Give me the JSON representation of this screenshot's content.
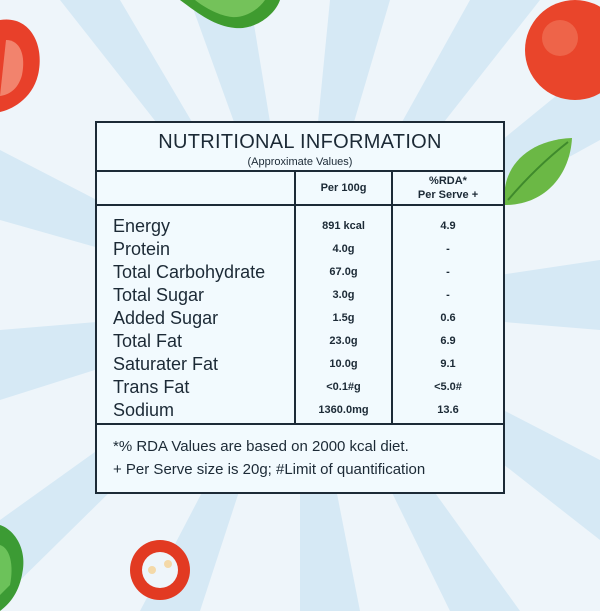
{
  "header": {
    "title": "NUTRITIONAL INFORMATION",
    "subtitle": "(Approximate Values)"
  },
  "columns": {
    "per_100g": "Per 100g",
    "rda_line1": "%RDA*",
    "rda_line2": "Per Serve +"
  },
  "rows": [
    {
      "name": "Energy",
      "per100": "891 kcal",
      "rda": "4.9"
    },
    {
      "name": "Protein",
      "per100": "4.0g",
      "rda": "-"
    },
    {
      "name": "Total Carbohydrate",
      "per100": "67.0g",
      "rda": "-"
    },
    {
      "name": "Total Sugar",
      "per100": "3.0g",
      "rda": "-"
    },
    {
      "name": "Added Sugar",
      "per100": "1.5g",
      "rda": "0.6"
    },
    {
      "name": "Total Fat",
      "per100": "23.0g",
      "rda": "6.9"
    },
    {
      "name": "Saturater Fat",
      "per100": "10.0g",
      "rda": "9.1"
    },
    {
      "name": "Trans Fat",
      "per100": "<0.1#g",
      "rda": "<5.0#"
    },
    {
      "name": "Sodium",
      "per100": "1360.0mg",
      "rda": "13.6"
    }
  ],
  "footer": {
    "line1": "*% RDA Values are based on 2000 kcal diet.",
    "line2": "+ Per Serve size is 20g;  #Limit of quantification"
  }
}
